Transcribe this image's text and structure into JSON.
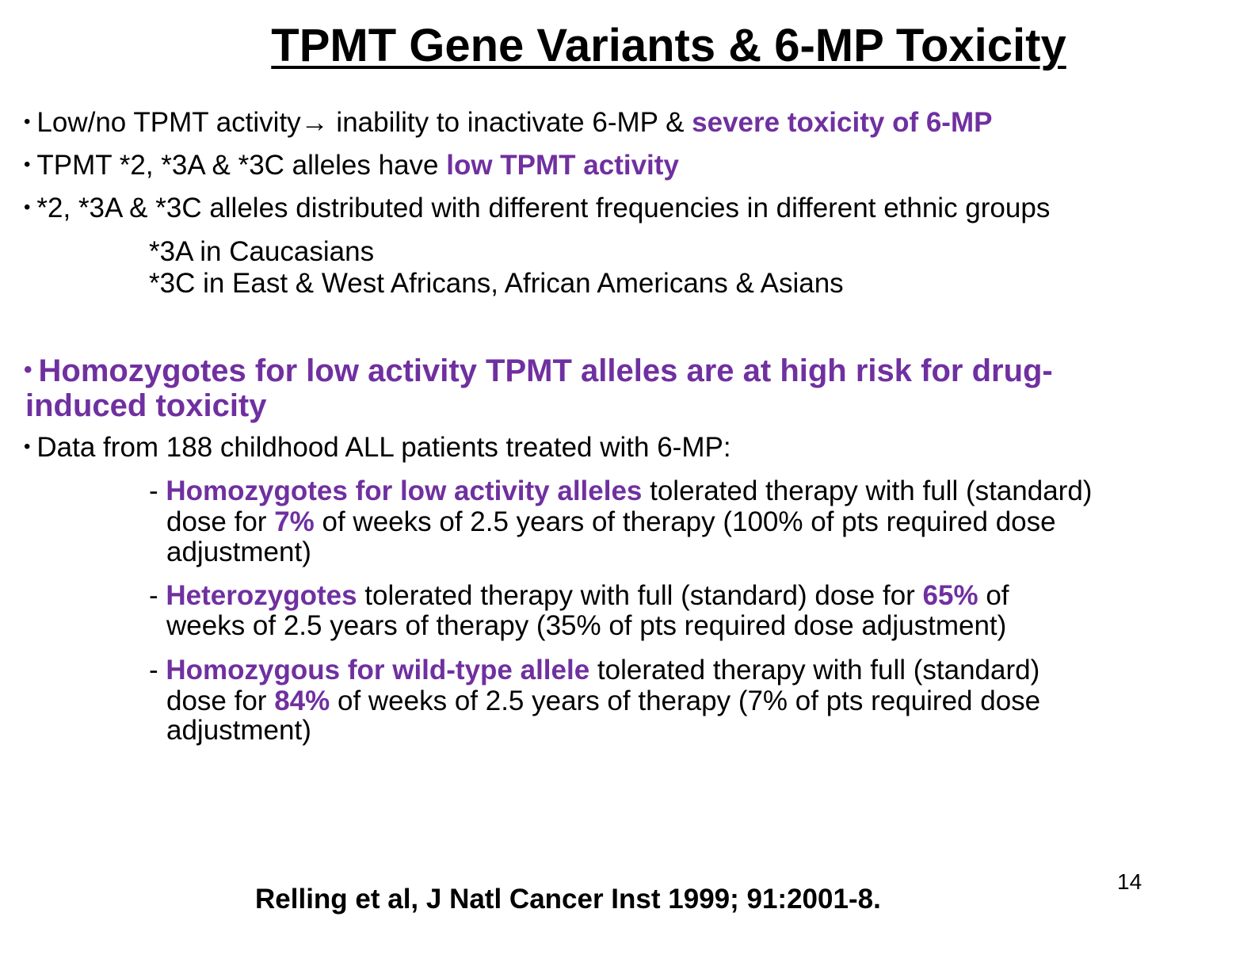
{
  "slide": {
    "title": "TPMT Gene Variants & 6-MP Toxicity",
    "bullet_char": "•",
    "b1": {
      "pre": "Low/no TPMT activity",
      "arrow": "→",
      "mid": " inability to inactivate 6-MP & ",
      "hl": "severe toxicity of 6-MP"
    },
    "b2": {
      "pre": "TPMT *2, *3A & *3C alleles have ",
      "hl": "low TPMT activity"
    },
    "b3": {
      "text": "*2, *3A & *3C alleles distributed with different frequencies in different  ethnic groups"
    },
    "ethnic": [
      "*3A  in Caucasians",
      "*3C in East & West Africans, African Americans & Asians"
    ],
    "b4": {
      "line1": "Homozygotes for low activity TPMT alleles are at high risk for drug-",
      "line2": "induced toxicity"
    },
    "b5": {
      "text": "Data from 188 childhood ALL patients treated with 6-MP:"
    },
    "d1": {
      "dash": "- ",
      "hl": "Homozygotes for low activity alleles",
      "rest1": " tolerated therapy with full (standard)",
      "l2a": "dose for ",
      "pct": "7%",
      "l2b": " of weeks of 2.5 years of therapy (100% of pts required dose",
      "l3": "adjustment)"
    },
    "d2": {
      "dash": "- ",
      "hl": "Heterozygotes",
      "rest1a": " tolerated therapy with full (standard) dose for ",
      "pct": "65%",
      "rest1b": " of",
      "l2": "weeks of 2.5 years of therapy (35% of pts required dose adjustment)"
    },
    "d3": {
      "dash": "- ",
      "hl": "Homozygous for wild-type allele",
      "rest1": " tolerated therapy with full (standard)",
      "l2a": "dose for ",
      "pct": "84%",
      "l2b": " of weeks of 2.5 years of therapy (7% of pts required dose",
      "l3": "adjustment)"
    },
    "page_number": "14",
    "citation": "Relling et al, J Natl Cancer Inst 1999; 91:2001-8.",
    "colors": {
      "accent": "#7030a0",
      "text": "#000000"
    }
  }
}
